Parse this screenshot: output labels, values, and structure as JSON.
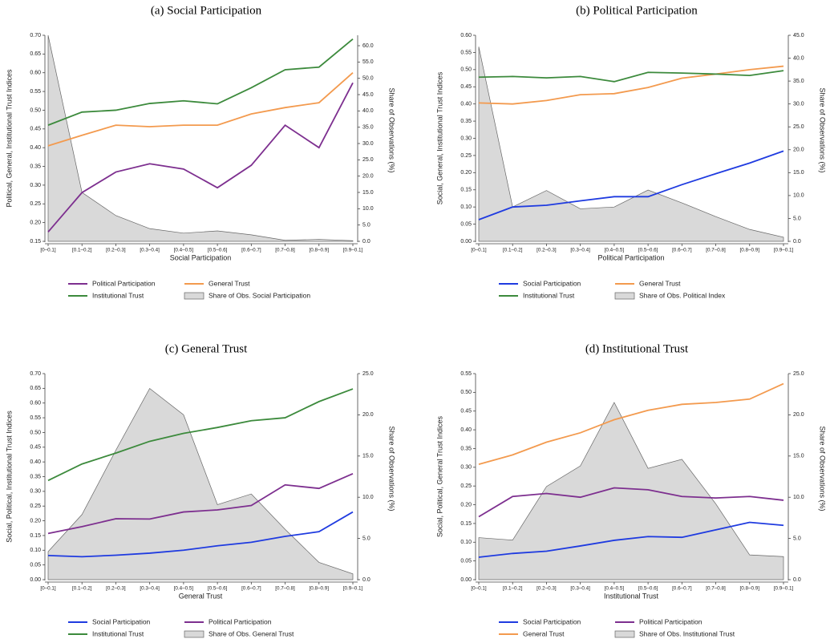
{
  "chart_data": [
    {
      "type": "line",
      "title": "(a) Social Participation",
      "x_label": "Social Participation",
      "y_label": "Political, General, Institutional Trust Indices",
      "y2_label": "Share of Observations (%)",
      "categories": [
        "[0–0.1]",
        "[0.1–0.2]",
        "[0.2–0.3]",
        "[0.3–0.4]",
        "[0.4–0.5]",
        "[0.5–0.6]",
        "[0.6–0.7]",
        "[0.7–0.8]",
        "[0.8–0.9]",
        "[0.9–0.1]"
      ],
      "ylim": [
        0.15,
        0.7
      ],
      "yticks": [
        {
          "value": 0.15,
          "label": "0.15"
        },
        {
          "value": 0.2,
          "label": "0.20"
        },
        {
          "value": 0.25,
          "label": "0.25"
        },
        {
          "value": 0.3,
          "label": "0.30"
        },
        {
          "value": 0.35,
          "label": "0.35"
        },
        {
          "value": 0.4,
          "label": "0.40"
        },
        {
          "value": 0.45,
          "label": "0.45"
        },
        {
          "value": 0.5,
          "label": "0.50"
        },
        {
          "value": 0.55,
          "label": "0.55"
        },
        {
          "value": 0.6,
          "label": "0.60"
        },
        {
          "value": 0.65,
          "label": "0.65"
        },
        {
          "value": 0.7,
          "label": "0.70"
        }
      ],
      "y2lim": [
        0,
        63.2
      ],
      "y2ticks": [
        {
          "value": 0,
          "label": "0.0"
        },
        {
          "value": 5,
          "label": "5.0"
        },
        {
          "value": 10,
          "label": "10.0"
        },
        {
          "value": 15,
          "label": "15.0"
        },
        {
          "value": 20,
          "label": "20.0"
        },
        {
          "value": 25,
          "label": "25.0"
        },
        {
          "value": 30,
          "label": "30.0"
        },
        {
          "value": 35,
          "label": "35.0"
        },
        {
          "value": 40,
          "label": "40.0"
        },
        {
          "value": 45,
          "label": "45.0"
        },
        {
          "value": 50,
          "label": "50.0"
        },
        {
          "value": 55,
          "label": "55.0"
        },
        {
          "value": 60,
          "label": "60.0"
        }
      ],
      "series": [
        {
          "name": "Political Participation",
          "color": "#7d2f8f",
          "values": [
            0.175,
            0.28,
            0.335,
            0.357,
            0.343,
            0.293,
            0.353,
            0.46,
            0.4,
            0.573
          ]
        },
        {
          "name": "General Trust",
          "color": "#f39a4e",
          "values": [
            0.405,
            0.433,
            0.46,
            0.456,
            0.46,
            0.46,
            0.49,
            0.507,
            0.52,
            0.6
          ]
        },
        {
          "name": "Institutional Trust",
          "color": "#3c8a3c",
          "values": [
            0.46,
            0.495,
            0.5,
            0.518,
            0.525,
            0.517,
            0.56,
            0.608,
            0.615,
            0.69
          ]
        },
        {
          "name": "Share of Obs. Social Participation",
          "type": "area",
          "axis": "y2",
          "color": "#d9d9d9",
          "values": [
            63.2,
            15.0,
            7.9,
            3.9,
            2.5,
            3.2,
            2.0,
            0.3,
            0.6,
            0.2
          ]
        }
      ]
    },
    {
      "type": "line",
      "title": "(b) Political Participation",
      "x_label": "Political Participation",
      "y_label": "Social, General, Institutional Trust Indices",
      "y2_label": "Share of Observations (%)",
      "categories": [
        "[0–0.1]",
        "[0.1–0.2]",
        "[0.2–0.3]",
        "[0.3–0.4]",
        "[0.4–0.5]",
        "[0.5–0.6]",
        "[0.6–0.7]",
        "[0.7–0.8]",
        "[0.8–0.9]",
        "[0.9–0.1]"
      ],
      "ylim": [
        0,
        0.6
      ],
      "yticks": [
        {
          "value": 0,
          "label": "0.00"
        },
        {
          "value": 0.05,
          "label": "0.05"
        },
        {
          "value": 0.1,
          "label": "0.10"
        },
        {
          "value": 0.15,
          "label": "0.15"
        },
        {
          "value": 0.2,
          "label": "0.20"
        },
        {
          "value": 0.25,
          "label": "0.25"
        },
        {
          "value": 0.3,
          "label": "0.30"
        },
        {
          "value": 0.35,
          "label": "0.35"
        },
        {
          "value": 0.4,
          "label": "0.40"
        },
        {
          "value": 0.45,
          "label": "0.45"
        },
        {
          "value": 0.5,
          "label": "0.50"
        },
        {
          "value": 0.55,
          "label": "0.55"
        },
        {
          "value": 0.6,
          "label": "0.60"
        }
      ],
      "y2lim": [
        0,
        45
      ],
      "y2ticks": [
        {
          "value": 0,
          "label": "0.0"
        },
        {
          "value": 5,
          "label": "5.0"
        },
        {
          "value": 10,
          "label": "10.0"
        },
        {
          "value": 15,
          "label": "15.0"
        },
        {
          "value": 20,
          "label": "20.0"
        },
        {
          "value": 25,
          "label": "25.0"
        },
        {
          "value": 30,
          "label": "30.0"
        },
        {
          "value": 35,
          "label": "35.0"
        },
        {
          "value": 40,
          "label": "40.0"
        },
        {
          "value": 45,
          "label": "45.0"
        }
      ],
      "series": [
        {
          "name": "Social Participation",
          "color": "#1f3be0",
          "values": [
            0.063,
            0.1,
            0.105,
            0.118,
            0.13,
            0.13,
            0.165,
            0.197,
            0.228,
            0.263
          ]
        },
        {
          "name": "General Trust",
          "color": "#f39a4e",
          "values": [
            0.403,
            0.4,
            0.41,
            0.427,
            0.43,
            0.448,
            0.475,
            0.487,
            0.5,
            0.51
          ]
        },
        {
          "name": "Institutional Trust",
          "color": "#3c8a3c",
          "values": [
            0.478,
            0.48,
            0.476,
            0.48,
            0.465,
            0.492,
            0.49,
            0.487,
            0.483,
            0.497
          ]
        },
        {
          "name": "Share of Obs. Political Index",
          "type": "area",
          "axis": "y2",
          "color": "#d9d9d9",
          "values": [
            42.5,
            7.5,
            11.1,
            7.1,
            7.5,
            11.2,
            8.4,
            5.4,
            2.6,
            0.9
          ]
        }
      ]
    },
    {
      "type": "line",
      "title": "(c) General Trust",
      "x_label": "General Trust",
      "y_label": "Social, Political, Institutional Trust Indices",
      "y2_label": "Share of Observations (%)",
      "categories": [
        "[0–0.1]",
        "[0.1–0.2]",
        "[0.2–0.3]",
        "[0.3–0.4]",
        "[0.4–0.5]",
        "[0.5–0.6]",
        "[0.6–0.7]",
        "[0.7–0.8]",
        "[0.8–0.9]",
        "[0.9–0.1]"
      ],
      "ylim": [
        0,
        0.7
      ],
      "yticks": [
        {
          "value": 0,
          "label": "0.00"
        },
        {
          "value": 0.05,
          "label": "0.05"
        },
        {
          "value": 0.1,
          "label": "0.10"
        },
        {
          "value": 0.15,
          "label": "0.15"
        },
        {
          "value": 0.2,
          "label": "0.20"
        },
        {
          "value": 0.25,
          "label": "0.25"
        },
        {
          "value": 0.3,
          "label": "0.30"
        },
        {
          "value": 0.35,
          "label": "0.35"
        },
        {
          "value": 0.4,
          "label": "0.40"
        },
        {
          "value": 0.45,
          "label": "0.45"
        },
        {
          "value": 0.5,
          "label": "0.50"
        },
        {
          "value": 0.55,
          "label": "0.55"
        },
        {
          "value": 0.6,
          "label": "0.60"
        },
        {
          "value": 0.65,
          "label": "0.65"
        },
        {
          "value": 0.7,
          "label": "0.70"
        }
      ],
      "y2lim": [
        0,
        25
      ],
      "y2ticks": [
        {
          "value": 0,
          "label": "0.0"
        },
        {
          "value": 5,
          "label": "5.0"
        },
        {
          "value": 10,
          "label": "10.0"
        },
        {
          "value": 15,
          "label": "15.0"
        },
        {
          "value": 20,
          "label": "20.0"
        },
        {
          "value": 25,
          "label": "25.0"
        }
      ],
      "series": [
        {
          "name": "Social Participation",
          "color": "#1f3be0",
          "values": [
            0.082,
            0.078,
            0.083,
            0.09,
            0.1,
            0.115,
            0.127,
            0.147,
            0.163,
            0.23
          ]
        },
        {
          "name": "Political Participation",
          "color": "#7d2f8f",
          "values": [
            0.157,
            0.18,
            0.207,
            0.206,
            0.23,
            0.237,
            0.252,
            0.322,
            0.31,
            0.36
          ]
        },
        {
          "name": "Institutional Trust",
          "color": "#3c8a3c",
          "values": [
            0.337,
            0.393,
            0.43,
            0.47,
            0.497,
            0.517,
            0.54,
            0.55,
            0.605,
            0.648
          ]
        },
        {
          "name": "Share of Obs. General Trust",
          "type": "area",
          "axis": "y2",
          "color": "#d9d9d9",
          "values": [
            3.4,
            7.9,
            15.7,
            23.2,
            20.0,
            9.1,
            10.4,
            6.1,
            2.1,
            0.7
          ]
        }
      ]
    },
    {
      "type": "line",
      "title": "(d) Institutional Trust",
      "x_label": "Institutional Trust",
      "y_label": "Social, Political, General Trust Indices",
      "y2_label": "Share of Observations (%)",
      "categories": [
        "[0–0.1]",
        "[0.1–0.2]",
        "[0.2–0.3]",
        "[0.3–0.4]",
        "[0.4–0.5]",
        "[0.5–0.6]",
        "[0.6–0.7]",
        "[0.7–0.8]",
        "[0.8–0.9]",
        "[0.9–0.1]"
      ],
      "ylim": [
        0,
        0.55
      ],
      "yticks": [
        {
          "value": 0,
          "label": "0.00"
        },
        {
          "value": 0.05,
          "label": "0.05"
        },
        {
          "value": 0.1,
          "label": "0.10"
        },
        {
          "value": 0.15,
          "label": "0.15"
        },
        {
          "value": 0.2,
          "label": "0.20"
        },
        {
          "value": 0.25,
          "label": "0.25"
        },
        {
          "value": 0.3,
          "label": "0.30"
        },
        {
          "value": 0.35,
          "label": "0.35"
        },
        {
          "value": 0.4,
          "label": "0.40"
        },
        {
          "value": 0.45,
          "label": "0.45"
        },
        {
          "value": 0.5,
          "label": "0.50"
        },
        {
          "value": 0.55,
          "label": "0.55"
        }
      ],
      "y2lim": [
        0,
        25
      ],
      "y2ticks": [
        {
          "value": 0,
          "label": "0.0"
        },
        {
          "value": 5,
          "label": "5.0"
        },
        {
          "value": 10,
          "label": "10.0"
        },
        {
          "value": 15,
          "label": "15.0"
        },
        {
          "value": 20,
          "label": "20.0"
        },
        {
          "value": 25,
          "label": "25.0"
        }
      ],
      "series": [
        {
          "name": "Social Participation",
          "color": "#1f3be0",
          "values": [
            0.06,
            0.07,
            0.076,
            0.09,
            0.105,
            0.115,
            0.113,
            0.133,
            0.153,
            0.145
          ]
        },
        {
          "name": "Political Participation",
          "color": "#7d2f8f",
          "values": [
            0.168,
            0.222,
            0.23,
            0.22,
            0.245,
            0.24,
            0.222,
            0.218,
            0.222,
            0.212
          ]
        },
        {
          "name": "General Trust",
          "color": "#f39a4e",
          "values": [
            0.308,
            0.333,
            0.367,
            0.392,
            0.427,
            0.452,
            0.468,
            0.473,
            0.482,
            0.523
          ]
        },
        {
          "name": "Share of Obs. Institutional Trust",
          "type": "area",
          "axis": "y2",
          "color": "#d9d9d9",
          "values": [
            5.1,
            4.8,
            11.3,
            13.8,
            21.5,
            13.5,
            14.6,
            9.2,
            3.0,
            2.8
          ]
        }
      ]
    }
  ]
}
